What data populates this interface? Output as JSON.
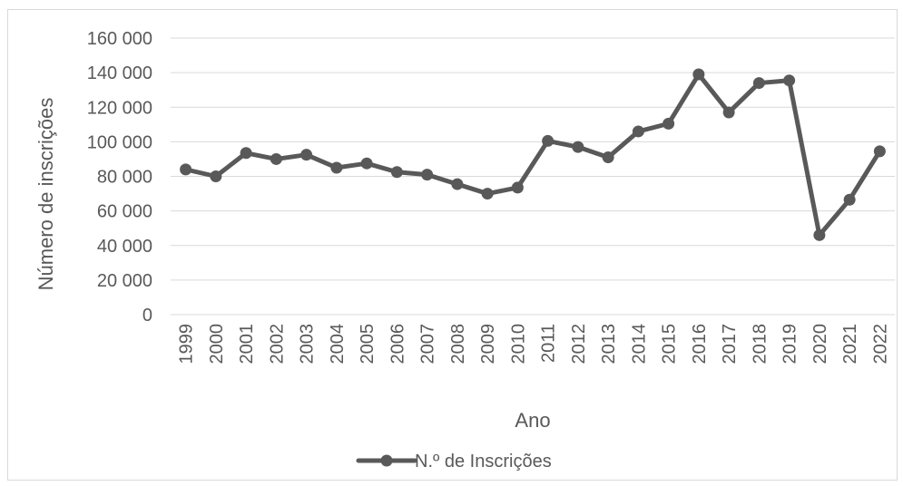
{
  "chart_data": {
    "type": "line",
    "title": "",
    "xlabel": "Ano",
    "ylabel": "Número de inscrições",
    "ylim": [
      0,
      160000
    ],
    "y_ticks": [
      0,
      20000,
      40000,
      60000,
      80000,
      100000,
      120000,
      140000,
      160000
    ],
    "y_tick_labels": [
      "0",
      "20 000",
      "40 000",
      "60 000",
      "80 000",
      "100 000",
      "120 000",
      "140 000",
      "160 000"
    ],
    "categories": [
      "1999",
      "2000",
      "2001",
      "2002",
      "2003",
      "2004",
      "2005",
      "2006",
      "2007",
      "2008",
      "2009",
      "2010",
      "2011",
      "2012",
      "2013",
      "2014",
      "2015",
      "2016",
      "2017",
      "2018",
      "2019",
      "2020",
      "2021",
      "2022"
    ],
    "series": [
      {
        "name": "N.º de Inscrições",
        "color": "#595959",
        "values": [
          84000,
          80000,
          93500,
          90000,
          92500,
          85000,
          87500,
          82500,
          81000,
          75500,
          70000,
          73500,
          100500,
          97000,
          91000,
          106000,
          110500,
          139000,
          117000,
          134000,
          135500,
          46000,
          66500,
          94500
        ]
      }
    ],
    "grid": true,
    "legend_position": "bottom"
  }
}
